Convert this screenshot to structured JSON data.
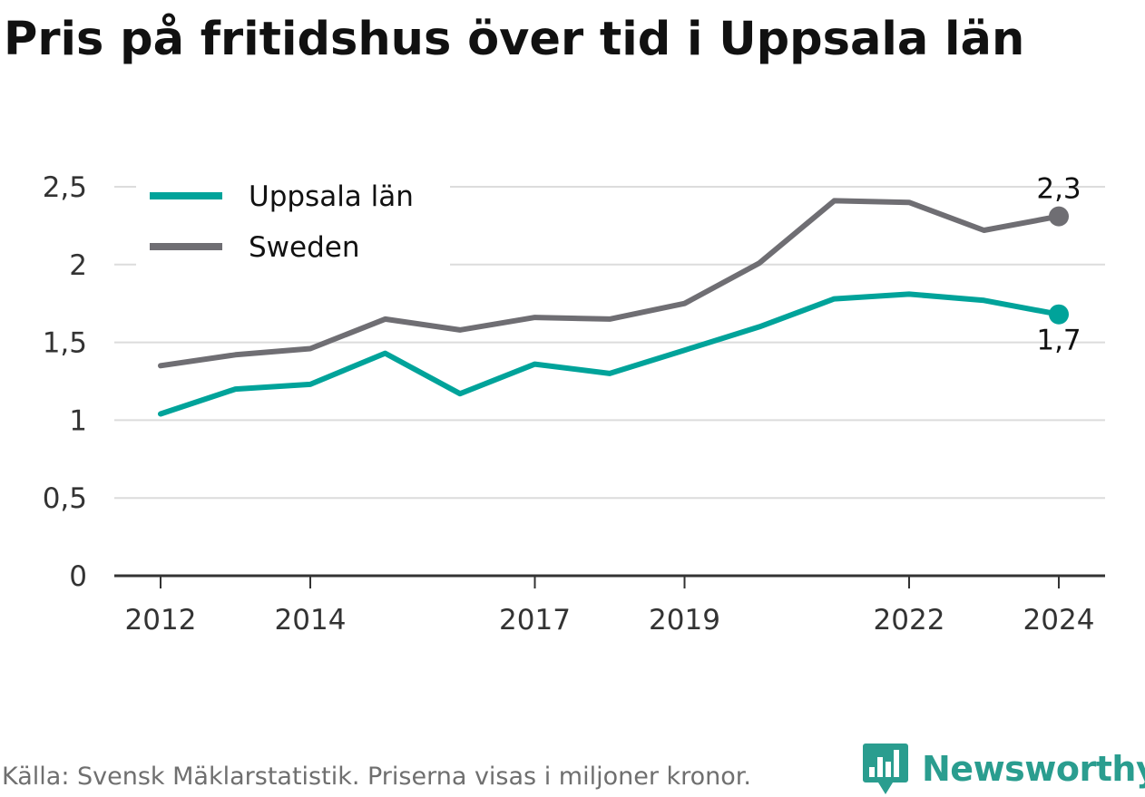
{
  "title": "Pris på fritidshus över tid i Uppsala län",
  "footer": {
    "source": "Källa: Svensk Mäklarstatistik. Priserna visas i miljoner kronor."
  },
  "brand": {
    "name": "Newsworthy",
    "icon": "newsworthy-chat-bars-icon",
    "color": "#2a9d8f"
  },
  "chart_data": {
    "type": "line",
    "title": "Pris på fritidshus över tid i Uppsala län",
    "xlabel": "",
    "ylabel": "",
    "x": [
      2012,
      2013,
      2014,
      2015,
      2016,
      2017,
      2018,
      2019,
      2020,
      2021,
      2022,
      2023,
      2024
    ],
    "x_ticks": [
      2012,
      2014,
      2017,
      2019,
      2022,
      2024
    ],
    "x_tick_labels": [
      "2012",
      "2014",
      "2017",
      "2019",
      "2022",
      "2024"
    ],
    "y_ticks": [
      0,
      0.5,
      1,
      1.5,
      2,
      2.5
    ],
    "y_tick_labels": [
      "0",
      "0,5",
      "1",
      "1,5",
      "2",
      "2,5"
    ],
    "ylim": [
      0,
      2.5
    ],
    "grid": true,
    "legend_position": "top-left",
    "series": [
      {
        "name": "Uppsala län",
        "color": "#00a39a",
        "values": [
          1.04,
          1.2,
          1.23,
          1.43,
          1.17,
          1.36,
          1.3,
          1.45,
          1.6,
          1.78,
          1.81,
          1.77,
          1.68
        ],
        "end_label": "1,7"
      },
      {
        "name": "Sweden",
        "color": "#6f6e73",
        "values": [
          1.35,
          1.42,
          1.46,
          1.65,
          1.58,
          1.66,
          1.65,
          1.75,
          2.01,
          2.41,
          2.4,
          2.22,
          2.31
        ],
        "end_label": "2,3"
      }
    ]
  }
}
